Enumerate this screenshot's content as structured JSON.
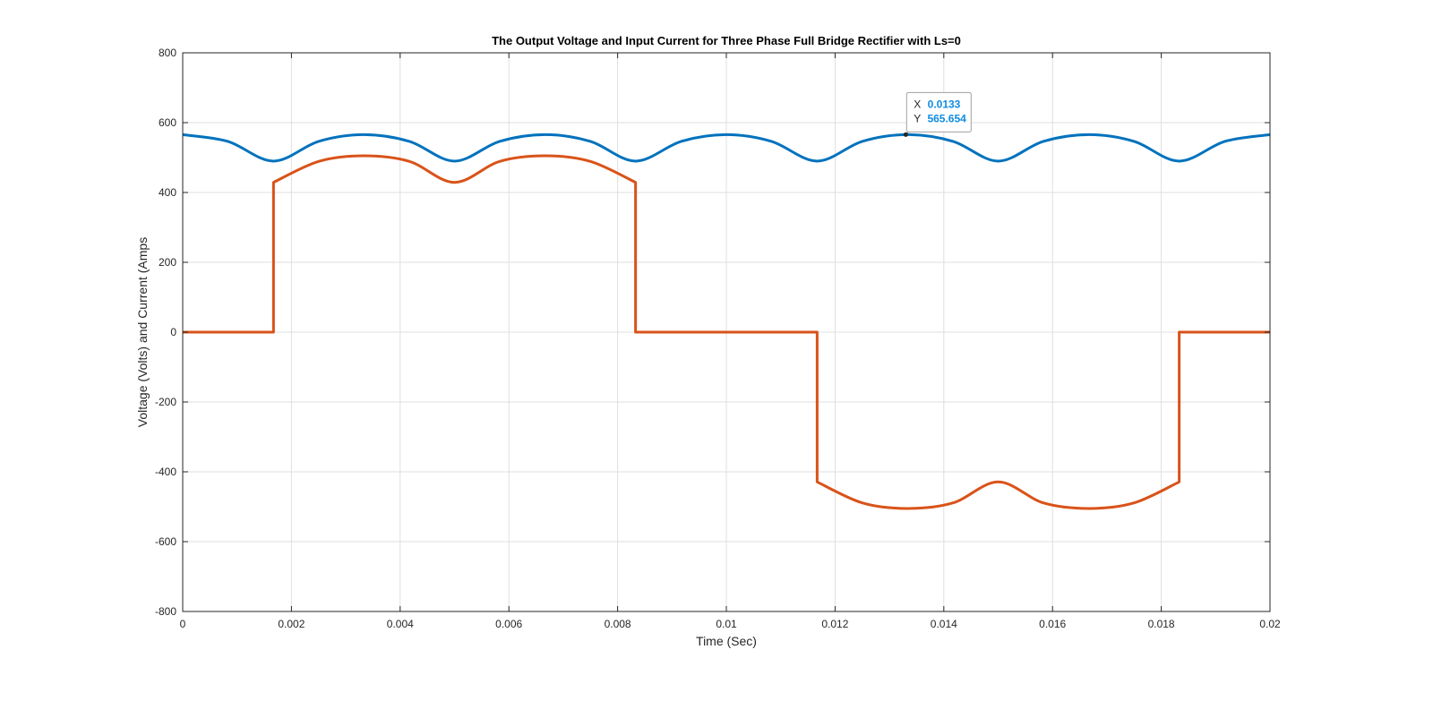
{
  "chart_data": {
    "type": "line",
    "title": "The Output Voltage and Input Current for Three Phase Full Bridge Rectifier with Ls=0",
    "xlabel": "Time (Sec)",
    "ylabel": "Voltage (Volts) and Current (Amps",
    "xlim": [
      0,
      0.02
    ],
    "ylim": [
      -800,
      800
    ],
    "xticks": [
      0,
      0.002,
      0.004,
      0.006,
      0.008,
      0.01,
      0.012,
      0.014,
      0.016,
      0.018,
      0.02
    ],
    "xtick_labels": [
      "0",
      "0.002",
      "0.004",
      "0.006",
      "0.008",
      "0.01",
      "0.012",
      "0.014",
      "0.016",
      "0.018",
      "0.02"
    ],
    "yticks": [
      -800,
      -600,
      -400,
      -200,
      0,
      200,
      400,
      600,
      800
    ],
    "ytick_labels": [
      "-800",
      "-600",
      "-400",
      "-200",
      "0",
      "200",
      "400",
      "600",
      "800"
    ],
    "grid": true,
    "series": [
      {
        "color": "#0072BD",
        "x": [
          0,
          0.00083,
          0.00167,
          0.0025,
          0.00333,
          0.00417,
          0.005,
          0.00583,
          0.00667,
          0.0075,
          0.00833,
          0.00917,
          0.01,
          0.01083,
          0.01167,
          0.0125,
          0.01333,
          0.01417,
          0.015,
          0.01583,
          0.01667,
          0.0175,
          0.01833,
          0.01917,
          0.02
        ],
        "values": [
          565.7,
          546.4,
          489.9,
          546.4,
          565.7,
          546.4,
          489.9,
          546.4,
          565.7,
          546.4,
          489.9,
          546.4,
          565.7,
          546.4,
          489.9,
          546.4,
          565.7,
          546.4,
          489.9,
          546.4,
          565.7,
          546.4,
          489.9,
          546.4,
          565.7
        ]
      },
      {
        "color": "#D95319",
        "x": [
          0,
          0.00167,
          0.00167,
          0.0025,
          0.00333,
          0.00417,
          0.005,
          0.00583,
          0.00667,
          0.0075,
          0.00833,
          0.00833,
          0.01167,
          0.01167,
          0.0125,
          0.01333,
          0.01417,
          0.015,
          0.01583,
          0.01667,
          0.0175,
          0.01833,
          0.01833,
          0.02
        ],
        "values": [
          0,
          0,
          429,
          489,
          505,
          489,
          429,
          489,
          505,
          489,
          429,
          0,
          0,
          -429,
          -489,
          -505,
          -489,
          -429,
          -489,
          -505,
          -489,
          -429,
          0,
          0
        ]
      }
    ],
    "annotations": [
      {
        "x_label": "X",
        "x_value": "0.0133",
        "y_label": "Y",
        "y_value": "565.654",
        "x": 0.0133,
        "y": 565.654
      }
    ]
  }
}
